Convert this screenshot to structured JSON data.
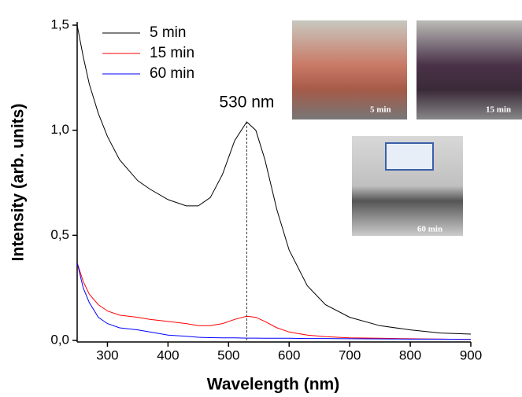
{
  "chart_data": {
    "type": "line",
    "x_label": "Wavelength (nm)",
    "y_label": "Intensity (arb. units)",
    "x": [
      250,
      260,
      270,
      285,
      300,
      320,
      350,
      370,
      400,
      430,
      450,
      470,
      490,
      510,
      530,
      545,
      560,
      580,
      600,
      630,
      660,
      700,
      750,
      800,
      850,
      900
    ],
    "series": [
      {
        "name": "5 min",
        "color": "#000000",
        "values": [
          1.5,
          1.35,
          1.22,
          1.08,
          0.97,
          0.86,
          0.76,
          0.72,
          0.67,
          0.64,
          0.64,
          0.68,
          0.79,
          0.95,
          1.04,
          1.0,
          0.86,
          0.62,
          0.43,
          0.26,
          0.17,
          0.11,
          0.07,
          0.05,
          0.035,
          0.03
        ]
      },
      {
        "name": "15 min",
        "color": "#ff0000",
        "values": [
          0.37,
          0.28,
          0.22,
          0.17,
          0.14,
          0.12,
          0.11,
          0.1,
          0.09,
          0.08,
          0.07,
          0.07,
          0.08,
          0.1,
          0.115,
          0.11,
          0.09,
          0.06,
          0.04,
          0.025,
          0.018,
          0.012,
          0.01,
          0.008,
          0.006,
          0.005
        ]
      },
      {
        "name": "60 min",
        "color": "#0000ff",
        "values": [
          0.37,
          0.25,
          0.18,
          0.11,
          0.08,
          0.06,
          0.05,
          0.04,
          0.025,
          0.02,
          0.015,
          0.013,
          0.012,
          0.012,
          0.011,
          0.011,
          0.01,
          0.01,
          0.01,
          0.009,
          0.009,
          0.008,
          0.007,
          0.006,
          0.006,
          0.005
        ]
      }
    ],
    "xlim": [
      250,
      900
    ],
    "xticks": [
      300,
      400,
      500,
      600,
      700,
      800,
      900
    ],
    "ylim": [
      0,
      1.5
    ],
    "yticks": [
      {
        "value": 0,
        "label": "0,0"
      },
      {
        "value": 0.5,
        "label": "0,5"
      },
      {
        "value": 1,
        "label": "1,0"
      },
      {
        "value": 1.5,
        "label": "1,5"
      }
    ],
    "legend": "upper left",
    "annotations": [
      {
        "text": "530 nm",
        "x": 530,
        "y": 1.04
      }
    ],
    "insets": [
      {
        "label": "5 min"
      },
      {
        "label": "15 min"
      },
      {
        "label": "60 min"
      }
    ]
  }
}
